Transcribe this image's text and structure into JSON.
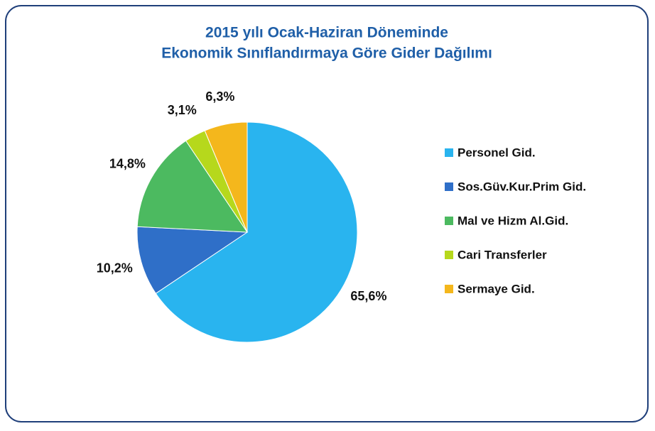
{
  "chart_data": {
    "type": "pie",
    "title": [
      "2015 yılı Ocak-Haziran Döneminde",
      "Ekonomik Sınıflandırmaya Göre Gider Dağılımı"
    ],
    "categories": [
      "Personel Gid.",
      "Sos.Güv.Kur.Prim Gid.",
      "Mal ve Hizm Al.Gid.",
      "Cari Transferler",
      "Sermaye Gid."
    ],
    "values": [
      65.6,
      10.2,
      14.8,
      3.1,
      6.3
    ],
    "value_labels": [
      "65,6%",
      "10,2%",
      "14,8%",
      "3,1%",
      "6,3%"
    ],
    "colors": [
      "#29b4ef",
      "#2f6fc8",
      "#4cba60",
      "#b6d81c",
      "#f4b71c"
    ],
    "legend": "right"
  }
}
